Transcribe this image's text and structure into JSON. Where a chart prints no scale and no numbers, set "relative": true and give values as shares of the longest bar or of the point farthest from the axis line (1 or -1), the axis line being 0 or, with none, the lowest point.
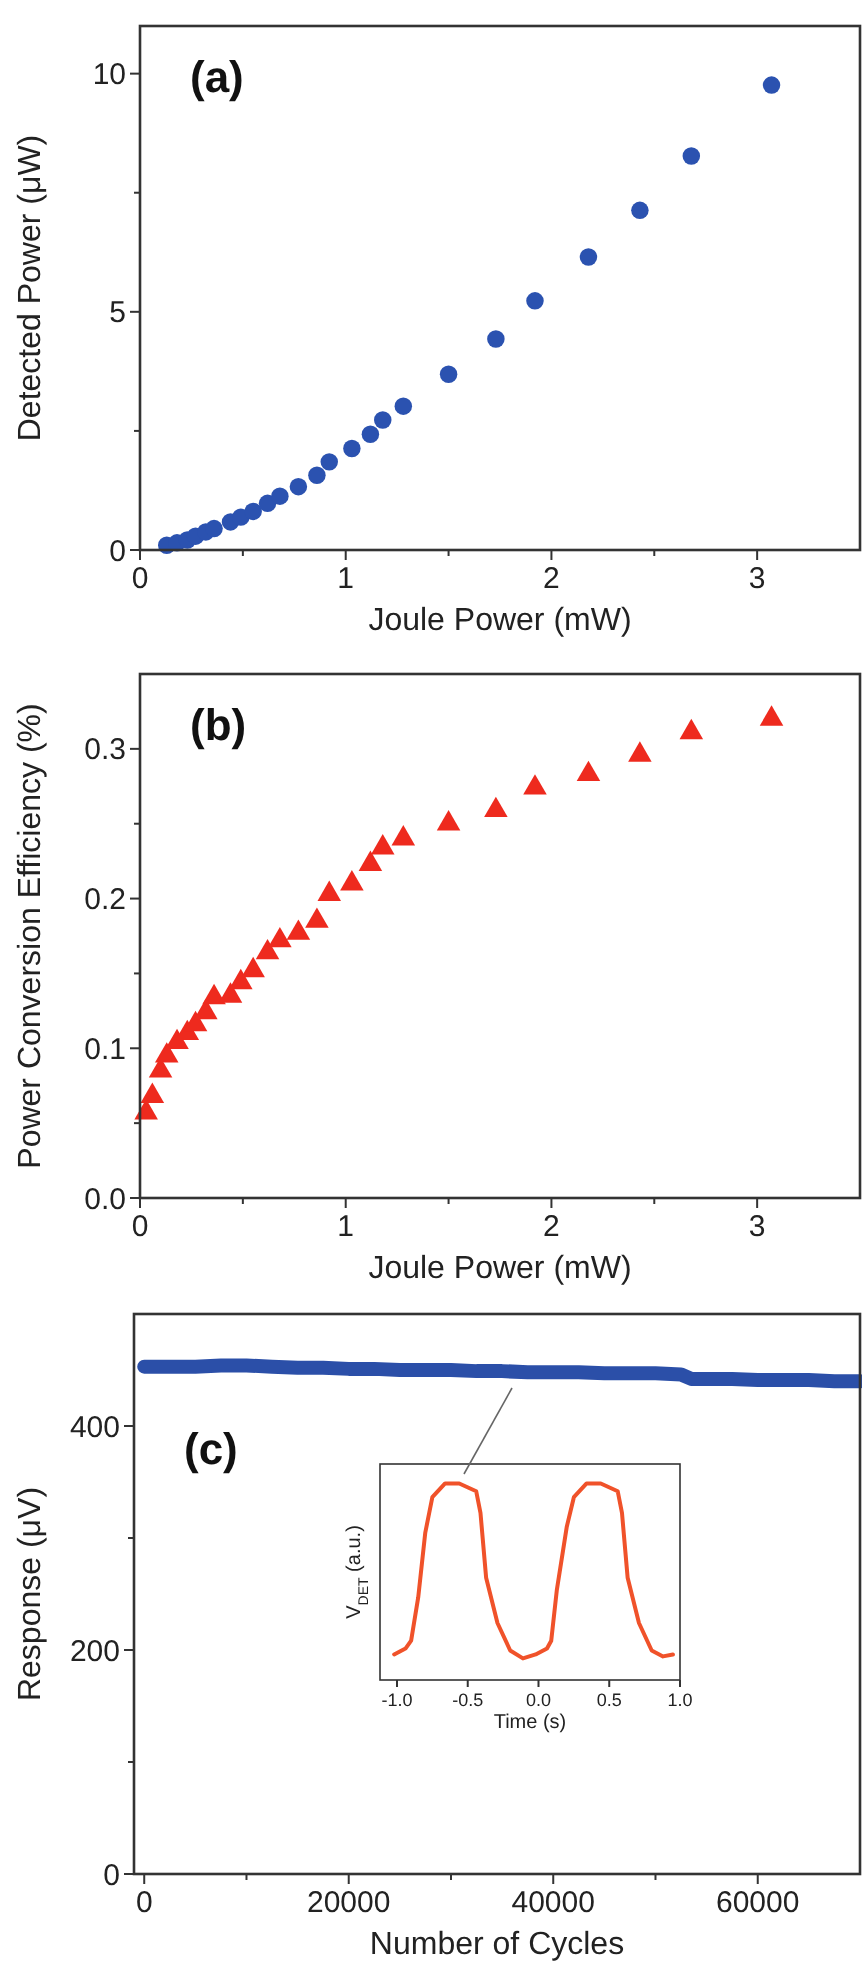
{
  "chart_data": [
    {
      "type": "scatter",
      "title": "(a)",
      "xlabel": "Joule Power (mW)",
      "ylabel": "Detected Power (μW)",
      "marker": "circle",
      "xlim": [
        0,
        3.5
      ],
      "xticks": [
        0,
        {
          "value": 0.5,
          "label": null
        },
        1,
        {
          "value": 1.5,
          "label": null
        },
        2,
        {
          "value": 2.5,
          "label": null
        },
        3
      ],
      "ylim": [
        0,
        11
      ],
      "yticks": [
        0,
        {
          "value": 2.5,
          "label": null
        },
        5,
        {
          "value": 7.5,
          "label": null
        },
        10
      ],
      "x": [
        0.13,
        0.18,
        0.23,
        0.27,
        0.32,
        0.36,
        0.44,
        0.49,
        0.55,
        0.62,
        0.68,
        0.77,
        0.86,
        0.92,
        1.03,
        1.12,
        1.18,
        1.28,
        1.5,
        1.73,
        1.92,
        2.18,
        2.43,
        2.68,
        3.07
      ],
      "series": [
        {
          "color": "#2b52b0",
          "values": [
            0.1,
            0.15,
            0.21,
            0.29,
            0.38,
            0.45,
            0.59,
            0.69,
            0.81,
            0.98,
            1.13,
            1.33,
            1.57,
            1.85,
            2.13,
            2.43,
            2.73,
            3.02,
            3.69,
            4.43,
            5.23,
            6.15,
            7.13,
            8.27,
            9.76
          ]
        }
      ]
    },
    {
      "type": "scatter",
      "title": "(b)",
      "xlabel": "Joule Power (mW)",
      "ylabel": "Power Conversion Efficiency (%)",
      "marker": "triangle",
      "xlim": [
        0,
        3.5
      ],
      "xticks": [
        0,
        {
          "value": 0.5,
          "label": null
        },
        1,
        {
          "value": 1.5,
          "label": null
        },
        2,
        {
          "value": 2.5,
          "label": null
        },
        3
      ],
      "ylim": [
        0,
        0.35
      ],
      "yticks": [
        {
          "value": 0,
          "label": "0.0"
        },
        {
          "value": 0.05,
          "label": null
        },
        0.1,
        {
          "value": 0.15,
          "label": null
        },
        0.2,
        {
          "value": 0.25,
          "label": null
        },
        0.3
      ],
      "x": [
        0.03,
        0.06,
        0.1,
        0.13,
        0.18,
        0.23,
        0.27,
        0.32,
        0.36,
        0.44,
        0.49,
        0.55,
        0.62,
        0.68,
        0.77,
        0.86,
        0.92,
        1.03,
        1.12,
        1.18,
        1.28,
        1.5,
        1.73,
        1.92,
        2.18,
        2.43,
        2.68,
        3.07
      ],
      "series": [
        {
          "color": "#ee2a1e",
          "values": [
            0.057,
            0.068,
            0.085,
            0.095,
            0.104,
            0.11,
            0.116,
            0.124,
            0.134,
            0.135,
            0.144,
            0.152,
            0.164,
            0.172,
            0.177,
            0.185,
            0.203,
            0.21,
            0.223,
            0.234,
            0.24,
            0.25,
            0.259,
            0.274,
            0.283,
            0.296,
            0.311,
            0.32
          ]
        }
      ]
    },
    {
      "type": "line",
      "title": "(c)",
      "xlabel": "Number of Cycles",
      "ylabel": "Response (μV)",
      "marker": "none",
      "xlim": [
        -1000,
        70000
      ],
      "xticks": [
        0,
        {
          "value": 10000,
          "label": null
        },
        20000,
        {
          "value": 30000,
          "label": null
        },
        40000,
        {
          "value": 50000,
          "label": null
        },
        60000
      ],
      "ylim": [
        0,
        500
      ],
      "yticks": [
        0,
        {
          "value": 100,
          "label": null
        },
        200,
        {
          "value": 300,
          "label": null
        },
        400
      ],
      "x": [
        0,
        2500,
        5000,
        7500,
        10000,
        12500,
        15000,
        17500,
        20000,
        22500,
        25000,
        27500,
        30000,
        32500,
        35000,
        37500,
        40000,
        42500,
        45000,
        47500,
        50000,
        52500,
        53500,
        55000,
        57500,
        60000,
        62500,
        65000,
        67500,
        70000
      ],
      "series": [
        {
          "color": "#2b4fa8",
          "values": [
            453,
            453,
            453,
            454,
            454,
            453,
            452,
            452,
            451,
            451,
            450,
            450,
            450,
            449,
            449,
            448,
            448,
            448,
            447,
            447,
            447,
            446,
            442,
            442,
            442,
            441,
            441,
            441,
            440,
            440
          ]
        }
      ]
    },
    {
      "type": "line",
      "xlabel": "Time (s)",
      "ylabel": "V$_{DET}$ (a.u.)",
      "relative": true,
      "marker": "none",
      "xlim": [
        -1.12,
        1.0
      ],
      "xticks": [
        {
          "value": -1,
          "label": "-1.0"
        },
        {
          "value": -0.5,
          "label": "-0.5"
        },
        {
          "value": 0,
          "label": "0.0"
        },
        0.5,
        {
          "value": 1,
          "label": "1.0"
        }
      ],
      "x": [
        -1.02,
        -0.94,
        -0.9,
        -0.85,
        -0.8,
        -0.75,
        -0.66,
        -0.56,
        -0.44,
        -0.41,
        -0.37,
        -0.29,
        -0.2,
        -0.11,
        -0.02,
        0.06,
        0.09,
        0.13,
        0.2,
        0.25,
        0.34,
        0.44,
        0.56,
        0.59,
        0.63,
        0.71,
        0.8,
        0.88,
        0.95
      ],
      "series": [
        {
          "color": "#f0522a",
          "values": [
            0.13,
            0.16,
            0.2,
            0.42,
            0.75,
            0.93,
            1,
            1,
            0.96,
            0.85,
            0.52,
            0.29,
            0.15,
            0.11,
            0.13,
            0.16,
            0.2,
            0.46,
            0.78,
            0.93,
            1,
            1,
            0.96,
            0.85,
            0.52,
            0.29,
            0.15,
            0.12,
            0.13
          ]
        }
      ]
    }
  ]
}
